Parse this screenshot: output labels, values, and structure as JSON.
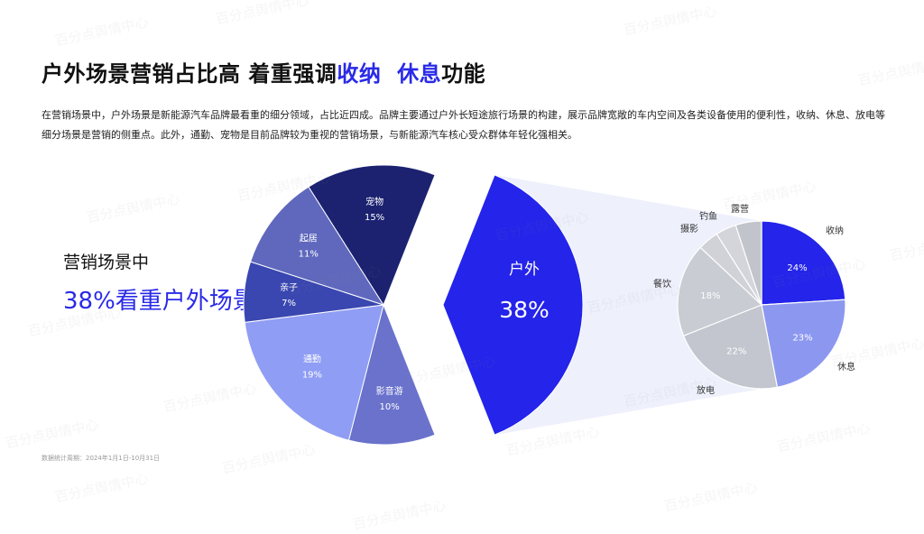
{
  "title": {
    "part1": "户外场景营销占比高  着重强调",
    "hl1": "收纳",
    "gap": "  ",
    "hl2": "休息",
    "part2": "功能"
  },
  "description": "在营销场景中，户外场景是新能源汽车品牌最看重的细分领域，占比近四成。品牌主要通过户外长短途旅行场景的构建，展示品牌宽敞的车内空间及各类设备使用的便利性，收纳、休息、放电等细分场景是营销的侧重点。此外，通勤、宠物是目前品牌较为重视的营销场景，与新能源汽车核心受众群体年轻化强相关。",
  "side_caption": "营销场景中",
  "side_highlight": "38%看重户外场景",
  "footnote": "数据统计周期：2024年1月1日-10月31日",
  "watermark": "百分点舆情中心",
  "colors": {
    "accent": "#2a2ae8",
    "background": "#ffffff"
  },
  "chart_data": [
    {
      "type": "pie",
      "title": "",
      "series": [
        {
          "label": "户外",
          "value": 38,
          "value_label": "38%",
          "color": "#2424ea",
          "exploded": true
        },
        {
          "label": "影音游",
          "value": 10,
          "value_label": "10%",
          "color": "#6a72cc"
        },
        {
          "label": "通勤",
          "value": 19,
          "value_label": "19%",
          "color": "#8f9df4"
        },
        {
          "label": "亲子",
          "value": 7,
          "value_label": "7%",
          "color": "#3a47b0"
        },
        {
          "label": "起居",
          "value": 11,
          "value_label": "11%",
          "color": "#5f68bd"
        },
        {
          "label": "宠物",
          "value": 15,
          "value_label": "15%",
          "color": "#1c2270"
        }
      ]
    },
    {
      "type": "pie",
      "title": "",
      "series": [
        {
          "label": "收纳",
          "value": 24,
          "value_label": "24%",
          "color": "#2424ea"
        },
        {
          "label": "休息",
          "value": 23,
          "value_label": "23%",
          "color": "#8c98f0"
        },
        {
          "label": "放电",
          "value": 22,
          "value_label": "22%",
          "color": "#c3c6ce"
        },
        {
          "label": "餐饮",
          "value": 18,
          "value_label": "18%",
          "color": "#c9ccd3"
        },
        {
          "label": "摄影",
          "value": 4,
          "value_label": "",
          "color": "#d0d2d8"
        },
        {
          "label": "钓鱼",
          "value": 4,
          "value_label": "",
          "color": "#d3d5db"
        },
        {
          "label": "露营",
          "value": 5,
          "value_label": "",
          "color": "#c2c4cb"
        }
      ]
    }
  ]
}
